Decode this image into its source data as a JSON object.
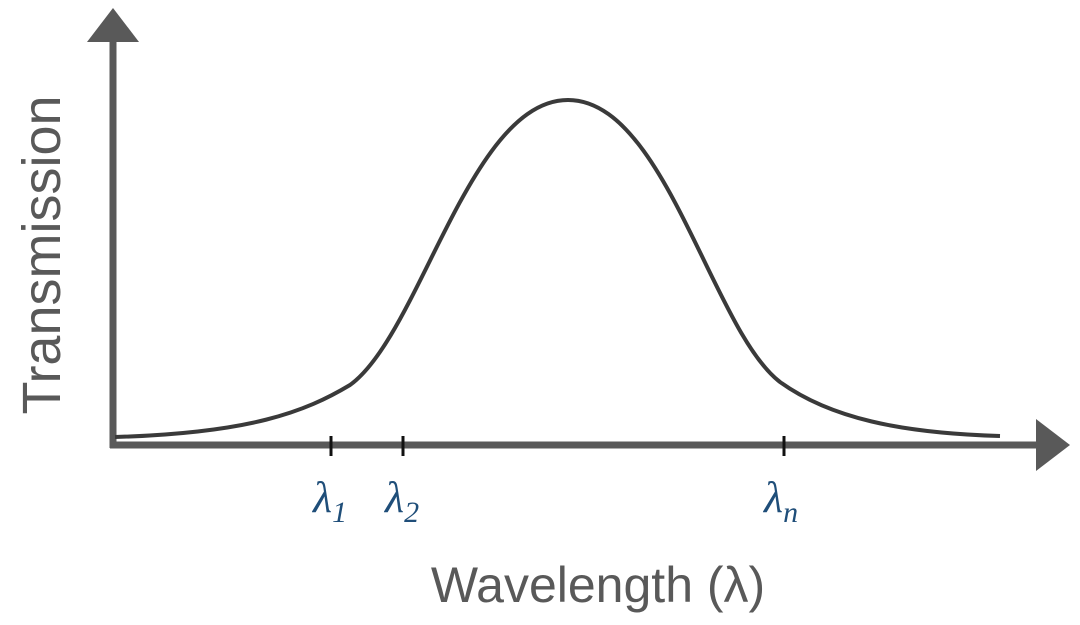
{
  "x_axis": {
    "label": "Wavelength (λ)",
    "ticks": [
      {
        "symbol": "λ",
        "subscript": "1"
      },
      {
        "symbol": "λ",
        "subscript": "2"
      },
      {
        "symbol": "λ",
        "subscript": "n"
      }
    ]
  },
  "y_axis": {
    "label": "Transmission"
  }
}
